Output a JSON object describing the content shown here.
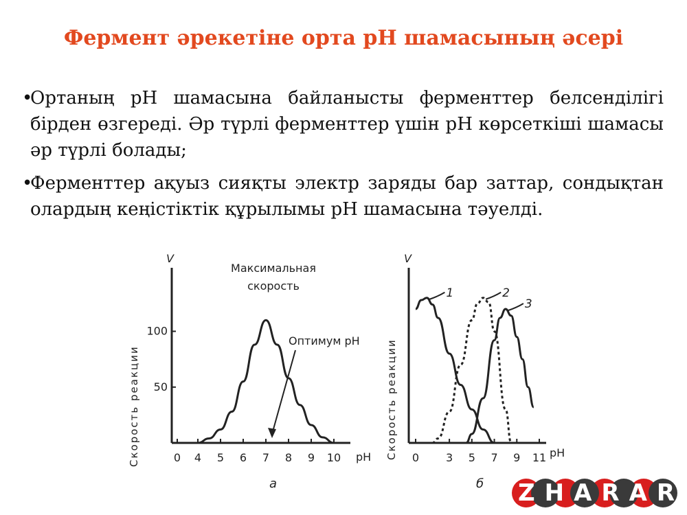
{
  "slide": {
    "title": "Фермент әрекетіне орта pH шамасының әсері",
    "bullets": [
      "Ортаның рН шамасына байланысты ферменттер белсенділігі бірден өзгереді. Әр түрлі ферменттер үшін рН көрсеткіші шамасы әр түрлі болады;",
      "Ферменттер ақуыз сияқты электр заряды бар заттар, сондықтан олардың кеңістіктік құрылымы рН шамасына тәуелді."
    ],
    "bullet_mark": "•"
  },
  "brand": {
    "text": "ZHARAR",
    "color_accent": "#d81e1e"
  },
  "chart_data": [
    {
      "type": "line",
      "panel_label": "а",
      "ylabel": "Скорость реакции",
      "y_symbol": "V",
      "xlabel": "pH",
      "x_ticks": [
        0,
        4,
        5,
        6,
        7,
        8,
        9,
        10
      ],
      "y_ticks": [
        50,
        100
      ],
      "xlim": [
        0,
        10
      ],
      "ylim": [
        0,
        160
      ],
      "annotations": [
        "Максимальная скорость",
        "Оптимум pH"
      ],
      "series": [
        {
          "x": [
            4,
            4.5,
            5,
            5.5,
            6,
            6.5,
            7,
            7.5,
            8,
            8.5,
            9,
            9.5,
            10
          ],
          "y": [
            0,
            4,
            12,
            28,
            55,
            88,
            110,
            88,
            58,
            34,
            16,
            5,
            0
          ],
          "style": "solid"
        }
      ]
    },
    {
      "type": "line",
      "panel_label": "б",
      "ylabel": "Скорость реакции",
      "y_symbol": "V",
      "xlabel": "pH",
      "x_ticks": [
        0,
        3,
        5,
        7,
        9,
        11
      ],
      "xlim": [
        0,
        11
      ],
      "ylim": [
        0,
        160
      ],
      "series": [
        {
          "name": "1",
          "style": "solid",
          "x": [
            0,
            0.5,
            1,
            1.5,
            2,
            3,
            4,
            5,
            6,
            7
          ],
          "y": [
            120,
            128,
            130,
            124,
            112,
            80,
            52,
            30,
            12,
            0
          ]
        },
        {
          "name": "2",
          "style": "dashed",
          "x": [
            1.5,
            2,
            3,
            4,
            5,
            5.5,
            6,
            6.5,
            7,
            8,
            8.5
          ],
          "y": [
            0,
            4,
            28,
            70,
            110,
            125,
            130,
            126,
            100,
            30,
            0
          ]
        },
        {
          "name": "3",
          "style": "solid",
          "x": [
            4.5,
            5,
            6,
            7,
            7.5,
            8,
            8.5,
            9,
            9.5,
            10,
            10.5
          ],
          "y": [
            0,
            8,
            40,
            92,
            112,
            120,
            114,
            95,
            75,
            50,
            32
          ]
        }
      ]
    }
  ]
}
